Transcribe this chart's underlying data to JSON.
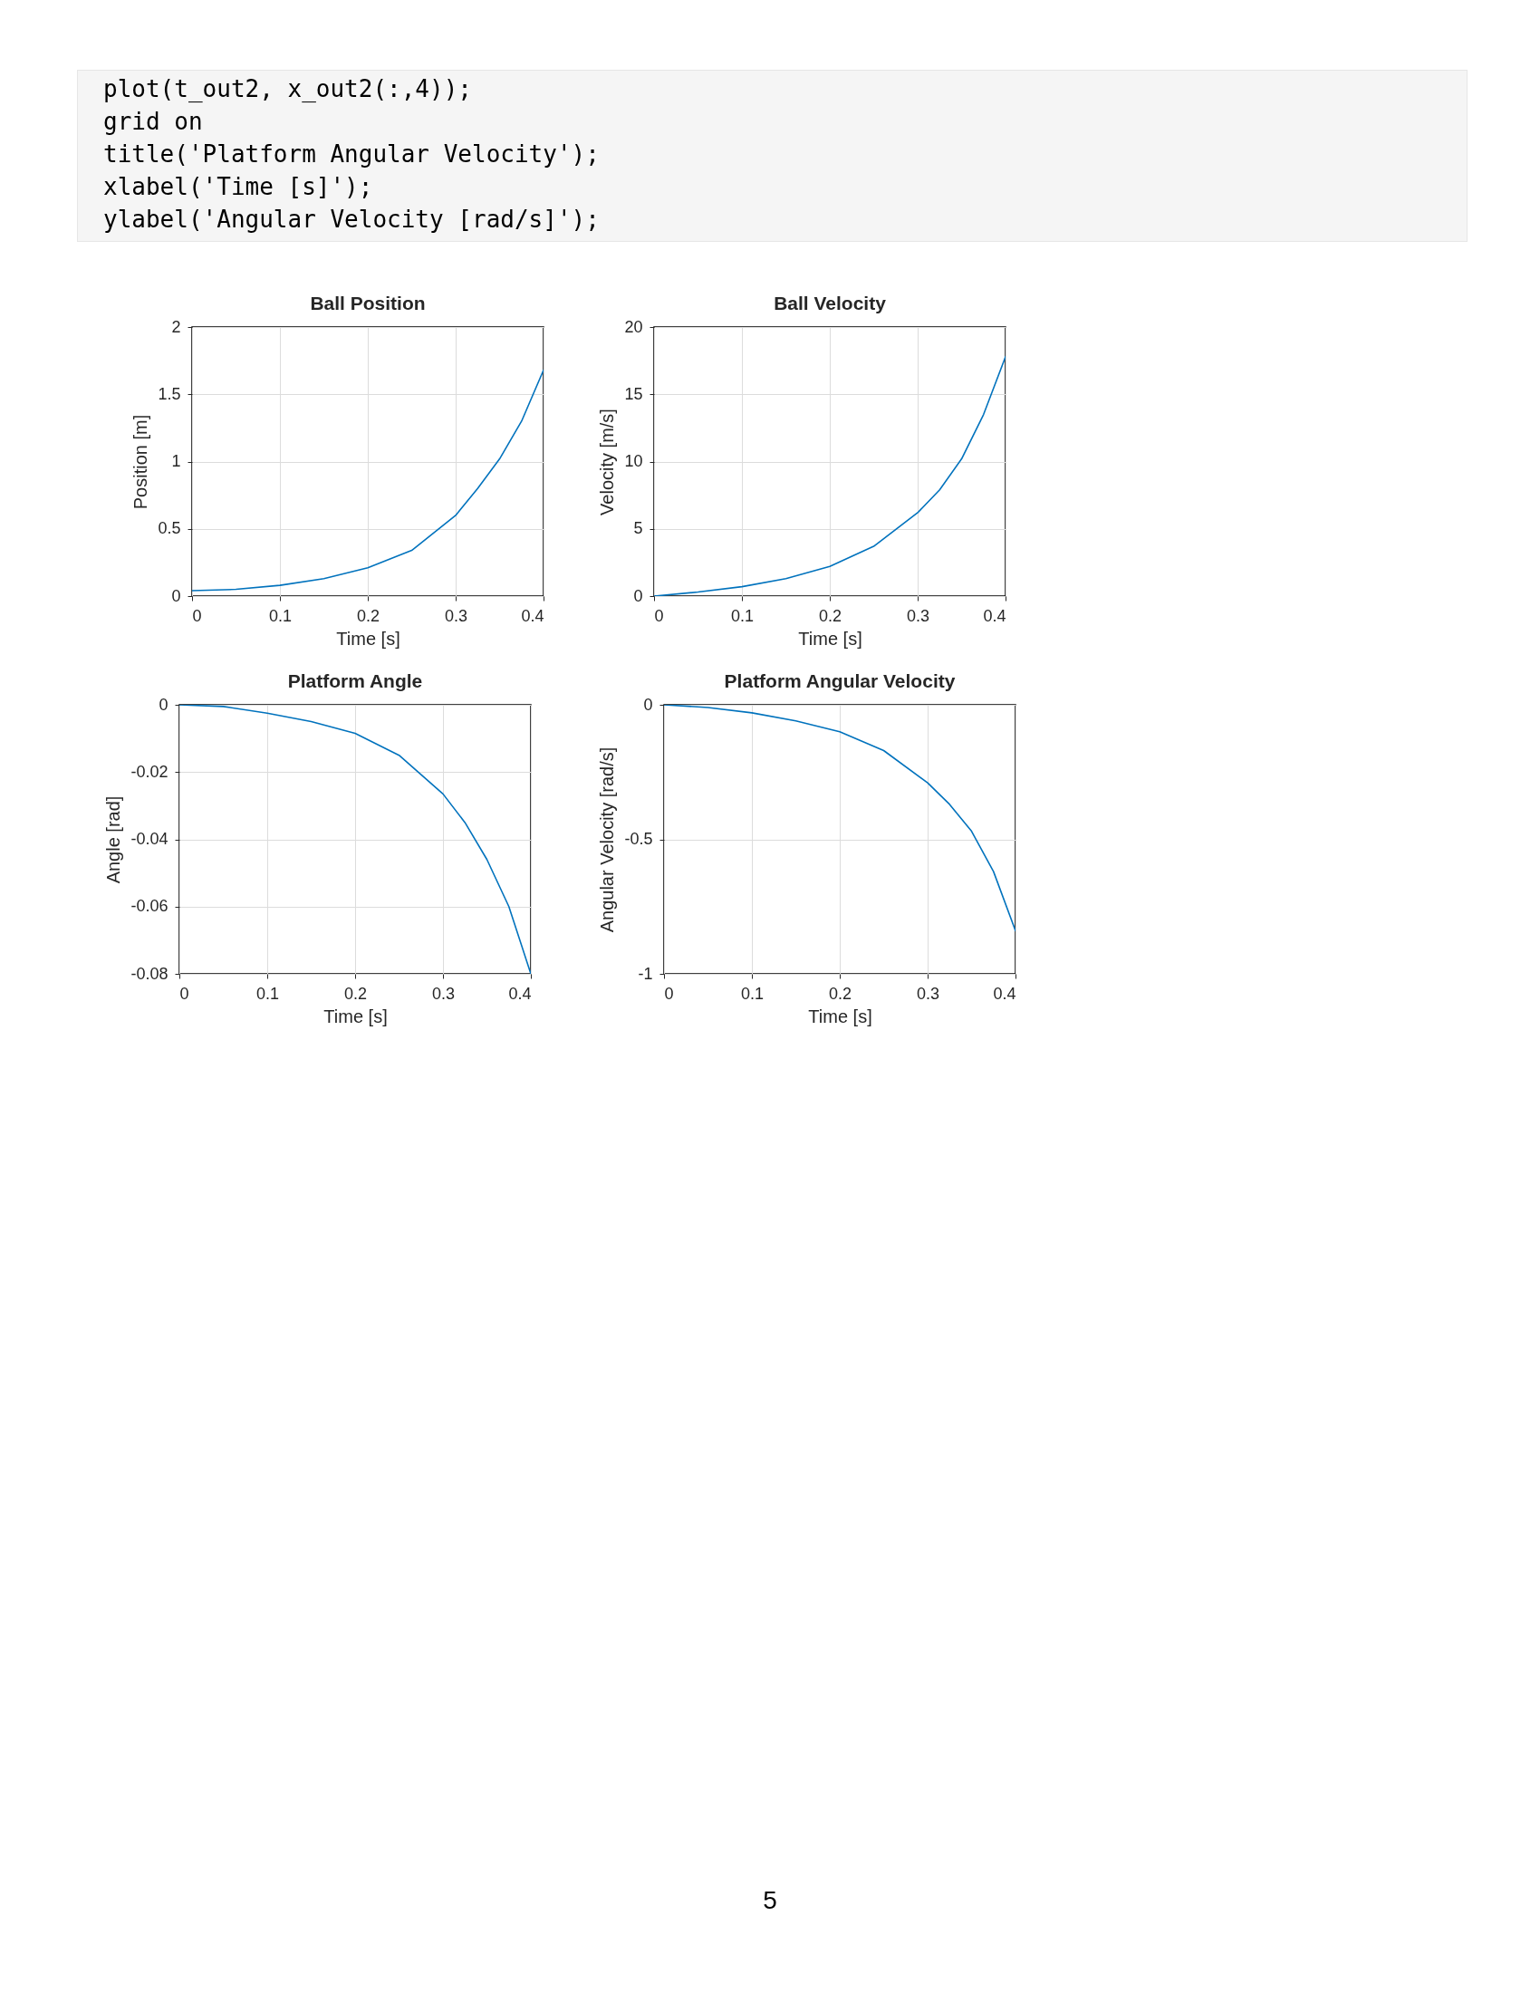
{
  "chart_data": [
    {
      "type": "line",
      "title": "Ball Position",
      "xlabel": "Time [s]",
      "ylabel": "Position [m]",
      "annotations": [
        "plot(t_out2, x_out2(:,4));",
        "grid on",
        "title('Platform Angular Velocity');",
        "xlabel('Time [s]');",
        "ylabel('Angular Velocity [rad/s]');"
      ],
      "x": [
        0,
        0.05,
        0.1,
        0.15,
        0.2,
        0.25,
        0.3,
        0.325,
        0.35,
        0.375,
        0.4
      ],
      "series": [
        {
          "color": "#0072bd",
          "values": [
            0.04,
            0.05,
            0.08,
            0.13,
            0.21,
            0.34,
            0.6,
            0.8,
            1.02,
            1.3,
            1.68
          ]
        }
      ],
      "xlim": [
        0,
        0.4
      ],
      "xticks": [
        0,
        0.1,
        0.2,
        0.3,
        0.4
      ],
      "ylim": [
        0,
        2
      ],
      "yticks": [
        0,
        0.5,
        1,
        1.5,
        2
      ],
      "grid": true,
      "line_style": "solid"
    },
    {
      "type": "line",
      "title": "Ball Velocity",
      "xlabel": "Time [s]",
      "ylabel": "Velocity [m/s]",
      "x": [
        0,
        0.05,
        0.1,
        0.15,
        0.2,
        0.25,
        0.3,
        0.325,
        0.35,
        0.375,
        0.4
      ],
      "series": [
        {
          "color": "#0072bd",
          "values": [
            0,
            0.3,
            0.7,
            1.3,
            2.2,
            3.7,
            6.2,
            7.9,
            10.2,
            13.5,
            17.8
          ]
        }
      ],
      "xlim": [
        0,
        0.4
      ],
      "xticks": [
        0,
        0.1,
        0.2,
        0.3,
        0.4
      ],
      "ylim": [
        0,
        20
      ],
      "yticks": [
        0,
        5,
        10,
        15,
        20
      ],
      "grid": true,
      "line_style": "solid"
    },
    {
      "type": "line",
      "title": "Platform Angle",
      "xlabel": "Time [s]",
      "ylabel": "Angle [rad]",
      "x": [
        0,
        0.05,
        0.1,
        0.15,
        0.2,
        0.25,
        0.3,
        0.325,
        0.35,
        0.375,
        0.4
      ],
      "series": [
        {
          "color": "#0072bd",
          "values": [
            0,
            -0.0005,
            -0.0025,
            -0.005,
            -0.0085,
            -0.015,
            -0.0265,
            -0.035,
            -0.046,
            -0.06,
            -0.08
          ]
        }
      ],
      "xlim": [
        0,
        0.4
      ],
      "xticks": [
        0,
        0.1,
        0.2,
        0.3,
        0.4
      ],
      "ylim": [
        -0.08,
        0
      ],
      "yticks": [
        -0.08,
        -0.06,
        -0.04,
        -0.02,
        0
      ],
      "grid": true,
      "line_style": "solid"
    },
    {
      "type": "line",
      "title": "Platform Angular Velocity",
      "xlabel": "Time [s]",
      "ylabel": "Angular Velocity [rad/s]",
      "annotations": [
        "5"
      ],
      "x": [
        0,
        0.05,
        0.1,
        0.15,
        0.2,
        0.25,
        0.3,
        0.325,
        0.35,
        0.375,
        0.4
      ],
      "series": [
        {
          "color": "#0072bd",
          "values": [
            0,
            -0.01,
            -0.03,
            -0.06,
            -0.1,
            -0.17,
            -0.29,
            -0.37,
            -0.47,
            -0.62,
            -0.84
          ]
        }
      ],
      "xlim": [
        0,
        0.4
      ],
      "xticks": [
        0,
        0.1,
        0.2,
        0.3,
        0.4
      ],
      "ylim": [
        -1,
        0
      ],
      "yticks": [
        -1,
        -0.5,
        0
      ],
      "grid": true,
      "line_style": "solid"
    }
  ]
}
